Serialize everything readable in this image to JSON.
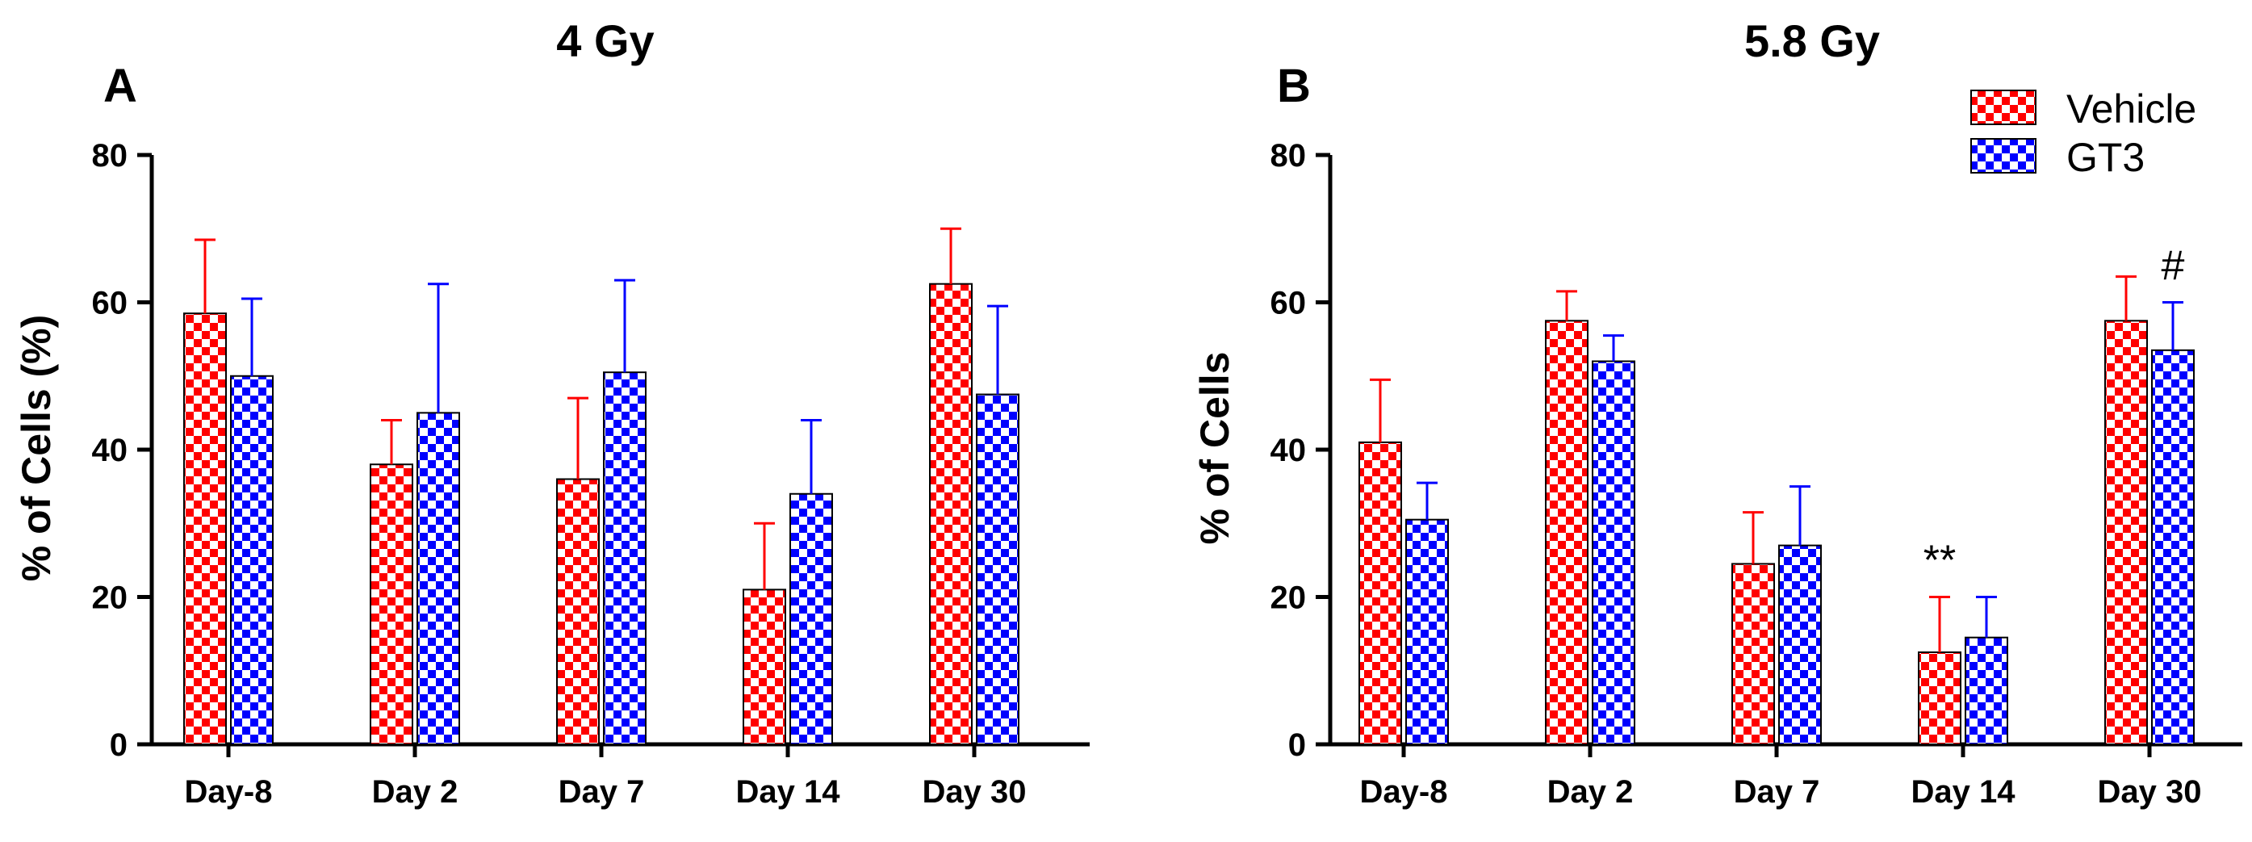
{
  "chart_data": [
    {
      "type": "bar",
      "panel": "A",
      "title": "4 Gy",
      "ylabel": "% of Cells (%)",
      "xlabel": "",
      "ylim": [
        0,
        80
      ],
      "yticks": [
        0,
        20,
        40,
        60,
        80
      ],
      "categories": [
        "Day-8",
        "Day 2",
        "Day 7",
        "Day 14",
        "Day 30"
      ],
      "series": [
        {
          "name": "Vehicle",
          "color": "#ff0000",
          "values": [
            58.5,
            38,
            36,
            21,
            62.5
          ],
          "errors": [
            10,
            6,
            11,
            9,
            7.5
          ]
        },
        {
          "name": "GT3",
          "color": "#0000ff",
          "values": [
            50,
            45,
            50.5,
            34,
            47.5
          ],
          "errors": [
            10.5,
            17.5,
            12.5,
            10,
            12
          ]
        }
      ],
      "annotations": []
    },
    {
      "type": "bar",
      "panel": "B",
      "title": "5.8 Gy",
      "ylabel": "% of Cells",
      "xlabel": "",
      "ylim": [
        0,
        80
      ],
      "yticks": [
        0,
        20,
        40,
        60,
        80
      ],
      "categories": [
        "Day-8",
        "Day 2",
        "Day 7",
        "Day 14",
        "Day 30"
      ],
      "series": [
        {
          "name": "Vehicle",
          "color": "#ff0000",
          "values": [
            41,
            57.5,
            24.5,
            12.5,
            57.5
          ],
          "errors": [
            8.5,
            4,
            7,
            7.5,
            6
          ]
        },
        {
          "name": "GT3",
          "color": "#0000ff",
          "values": [
            30.5,
            52,
            27,
            14.5,
            53.5
          ],
          "errors": [
            5,
            3.5,
            8,
            5.5,
            6.5
          ]
        }
      ],
      "annotations": [
        {
          "category_index": 3,
          "series_index": 0,
          "text": "**"
        },
        {
          "category_index": 4,
          "series_index": 1,
          "text": "#"
        }
      ],
      "legend": {
        "placement": "top-right",
        "entries": [
          "Vehicle",
          "GT3"
        ]
      }
    }
  ]
}
